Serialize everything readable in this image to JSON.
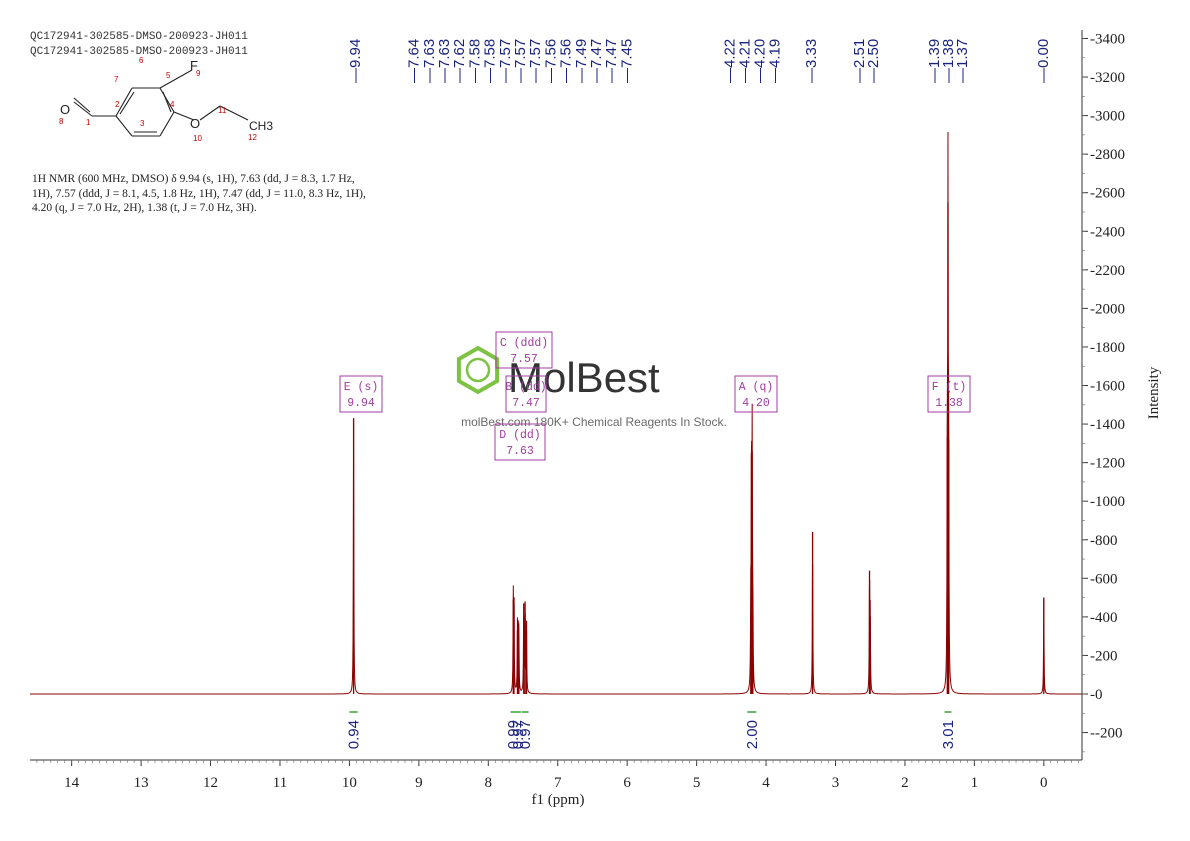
{
  "sample_ids": [
    "QC172941-302585-DMSO-200923-JH011",
    "QC172941-302585-DMSO-200923-JH011"
  ],
  "nmr_text": "1H NMR (600 MHz, DMSO) δ 9.94 (s, 1H), 7.63 (dd, J = 8.3, 1.7 Hz, 1H), 7.57 (ddd, J = 8.1, 4.5, 1.8 Hz, 1H), 7.47 (dd, J = 11.0, 8.3 Hz, 1H), 4.20 (q, J = 7.0 Hz, 2H), 1.38 (t, J = 7.0 Hz, 3H).",
  "structure": {
    "atoms": [
      "O",
      "8",
      "1",
      "2",
      "7",
      "6",
      "5",
      "F",
      "9",
      "4",
      "3",
      "O",
      "10",
      "11",
      "CH3",
      "12"
    ]
  },
  "watermark": {
    "brand": "MolBest",
    "tagline": "molBest.com  180K+ Chemical Reagents In Stock."
  },
  "colors": {
    "spectrum": "#8b0000",
    "integral": "#2a9d2a",
    "peak_label": "#1a237e",
    "multiplet_box": "#a03ca0"
  },
  "chart_data": {
    "type": "line",
    "xlabel": "f1 (ppm)",
    "ylabel": "Intensity",
    "xlim": [
      14.6,
      -0.55
    ],
    "ylim": [
      -350,
      3450
    ],
    "x_ticks": [
      14,
      13,
      12,
      11,
      10,
      9,
      8,
      7,
      6,
      5,
      4,
      3,
      2,
      1,
      0
    ],
    "y_ticks": [
      3400,
      3200,
      3000,
      2800,
      2600,
      2400,
      2200,
      2000,
      1800,
      1600,
      1400,
      1200,
      1000,
      800,
      600,
      400,
      200,
      0,
      -200
    ],
    "peaks": [
      {
        "ppm": 9.94,
        "height": 1430
      },
      {
        "ppm": 7.64,
        "height": 490
      },
      {
        "ppm": 7.63,
        "height": 500
      },
      {
        "ppm": 7.58,
        "height": 330
      },
      {
        "ppm": 7.57,
        "height": 350
      },
      {
        "ppm": 7.56,
        "height": 300
      },
      {
        "ppm": 7.49,
        "height": 470
      },
      {
        "ppm": 7.47,
        "height": 480
      },
      {
        "ppm": 7.45,
        "height": 380
      },
      {
        "ppm": 4.22,
        "height": 420
      },
      {
        "ppm": 4.21,
        "height": 1250
      },
      {
        "ppm": 4.2,
        "height": 1260
      },
      {
        "ppm": 4.19,
        "height": 410
      },
      {
        "ppm": 3.33,
        "height": 840
      },
      {
        "ppm": 2.51,
        "height": 640
      },
      {
        "ppm": 2.5,
        "height": 400
      },
      {
        "ppm": 1.39,
        "height": 1330
      },
      {
        "ppm": 1.38,
        "height": 2550
      },
      {
        "ppm": 1.37,
        "height": 1320
      },
      {
        "ppm": 0.0,
        "height": 500
      }
    ],
    "peak_label_groups": [
      {
        "labels": [
          "9.94"
        ]
      },
      {
        "labels": [
          "7.64",
          "7.63",
          "7.63",
          "7.62",
          "7.58",
          "7.58",
          "7.57",
          "7.57",
          "7.57",
          "7.56",
          "7.56",
          "7.49",
          "7.47",
          "7.47",
          "7.45"
        ]
      },
      {
        "labels": [
          "4.22",
          "4.21",
          "4.20",
          "4.19"
        ]
      },
      {
        "labels": [
          "3.33"
        ]
      },
      {
        "labels": [
          "2.51",
          "2.50"
        ]
      },
      {
        "labels": [
          "1.39",
          "1.38",
          "1.37"
        ]
      },
      {
        "labels": [
          "0.00"
        ]
      }
    ],
    "integrals": [
      {
        "from": 10.0,
        "to": 9.88,
        "value": "0.94"
      },
      {
        "from": 7.68,
        "to": 7.61,
        "value": "0.99"
      },
      {
        "from": 7.61,
        "to": 7.53,
        "value": "0.97"
      },
      {
        "from": 7.52,
        "to": 7.42,
        "value": "0.97"
      },
      {
        "from": 4.27,
        "to": 4.14,
        "value": "2.00"
      },
      {
        "from": 1.43,
        "to": 1.33,
        "value": "3.01"
      }
    ],
    "multiplets": [
      {
        "letter": "E",
        "type": "(s)",
        "shift": "9.94"
      },
      {
        "letter": "C",
        "type": "(ddd)",
        "shift": "7.57"
      },
      {
        "letter": "B",
        "type": "(dd)",
        "shift": "7.47"
      },
      {
        "letter": "D",
        "type": "(dd)",
        "shift": "7.63"
      },
      {
        "letter": "A",
        "type": "(q)",
        "shift": "4.20"
      },
      {
        "letter": "F",
        "type": "(t)",
        "shift": "1.38"
      }
    ]
  }
}
